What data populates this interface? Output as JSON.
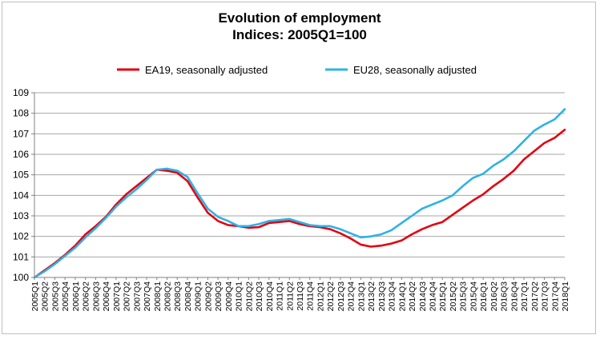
{
  "chart_data": {
    "type": "line",
    "title": "Evolution of employment",
    "subtitle": "Indices: 2005Q1=100",
    "xlabel": "",
    "ylabel": "",
    "ylim": [
      100,
      109
    ],
    "yticks": [
      100,
      101,
      102,
      103,
      104,
      105,
      106,
      107,
      108,
      109
    ],
    "grid": "horizontal",
    "legend_position": "top",
    "x": [
      "2005Q1",
      "2005Q2",
      "2005Q3",
      "2005Q4",
      "2006Q1",
      "2006Q2",
      "2006Q3",
      "2006Q4",
      "2007Q1",
      "2007Q2",
      "2007Q3",
      "2007Q4",
      "2008Q1",
      "2008Q2",
      "2008Q3",
      "2008Q4",
      "2009Q1",
      "2009Q2",
      "2009Q3",
      "2009Q4",
      "2010Q1",
      "2010Q2",
      "2010Q3",
      "2010Q4",
      "2011Q1",
      "2011Q2",
      "2011Q3",
      "2011Q4",
      "2012Q1",
      "2012Q2",
      "2012Q3",
      "2012Q4",
      "2013Q1",
      "2013Q2",
      "2013Q3",
      "2013Q4",
      "2014Q1",
      "2014Q2",
      "2014Q3",
      "2014Q4",
      "2015Q1",
      "2015Q2",
      "2015Q3",
      "2015Q4",
      "2016Q1",
      "2016Q2",
      "2016Q3",
      "2016Q4",
      "2017Q1",
      "2017Q2",
      "2017Q3",
      "2017Q4",
      "2018Q1"
    ],
    "series": [
      {
        "name": "EA19, seasonally adjusted",
        "color": "#e3000f",
        "values": [
          100.0,
          100.35,
          100.7,
          101.1,
          101.55,
          102.1,
          102.5,
          102.95,
          103.55,
          104.05,
          104.45,
          104.85,
          105.25,
          105.2,
          105.1,
          104.7,
          103.9,
          103.15,
          102.75,
          102.55,
          102.5,
          102.42,
          102.45,
          102.65,
          102.7,
          102.75,
          102.6,
          102.5,
          102.45,
          102.35,
          102.15,
          101.9,
          101.6,
          101.5,
          101.55,
          101.65,
          101.8,
          102.1,
          102.35,
          102.55,
          102.7,
          103.05,
          103.4,
          103.75,
          104.05,
          104.45,
          104.8,
          105.2,
          105.75,
          106.15,
          106.55,
          106.8,
          107.2
        ]
      },
      {
        "name": "EU28, seasonally adjusted",
        "color": "#2eb2e6",
        "values": [
          100.0,
          100.3,
          100.65,
          101.05,
          101.45,
          101.95,
          102.4,
          102.9,
          103.45,
          103.9,
          104.3,
          104.75,
          105.25,
          105.3,
          105.2,
          104.9,
          104.1,
          103.35,
          102.95,
          102.75,
          102.5,
          102.5,
          102.6,
          102.75,
          102.8,
          102.85,
          102.7,
          102.55,
          102.5,
          102.5,
          102.35,
          102.15,
          101.95,
          102.0,
          102.1,
          102.3,
          102.65,
          103.0,
          103.35,
          103.55,
          103.75,
          104.0,
          104.45,
          104.85,
          105.05,
          105.45,
          105.75,
          106.15,
          106.65,
          107.15,
          107.45,
          107.7,
          108.2
        ]
      }
    ]
  }
}
